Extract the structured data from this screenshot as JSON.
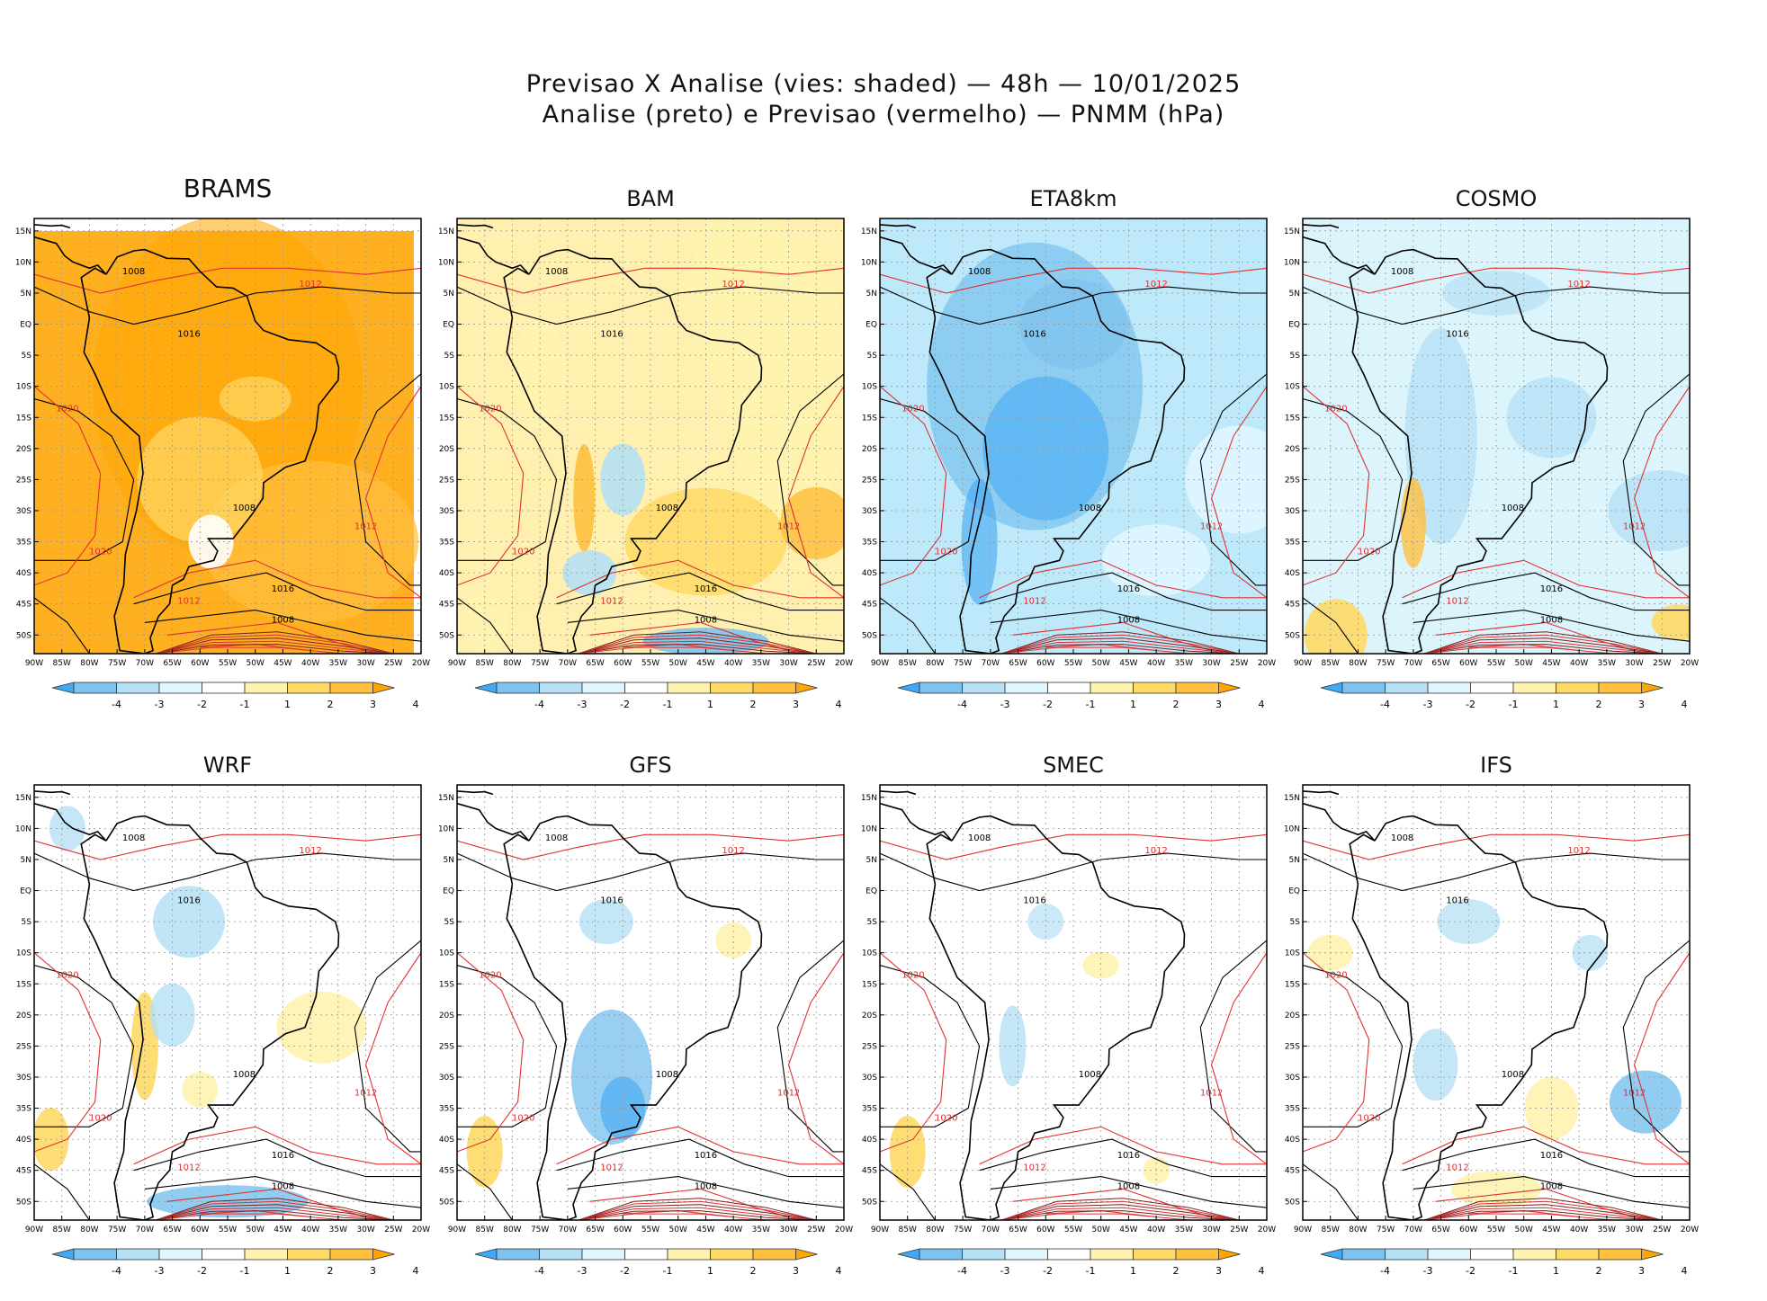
{
  "figure": {
    "title_line1": "Previsao X Analise (vies: shaded) — 48h — 10/01/2025",
    "title_line2": "Analise (preto) e Previsao (vermelho) — PNMM (hPa)"
  },
  "chart_data": {
    "type": "heatmap",
    "variable": "PNMM (hPa)",
    "lead_time": "48h",
    "date": "10/01/2025",
    "analysis_contour_color": "#000000",
    "forecast_contour_color": "#e03030",
    "lat_ticks": [
      "15N",
      "10N",
      "5N",
      "EQ",
      "5S",
      "10S",
      "15S",
      "20S",
      "25S",
      "30S",
      "35S",
      "40S",
      "45S",
      "50S"
    ],
    "lon_ticks": [
      "90W",
      "85W",
      "80W",
      "75W",
      "70W",
      "65W",
      "60W",
      "55W",
      "50W",
      "45W",
      "40W",
      "35W",
      "30W",
      "25W",
      "20W"
    ],
    "lon_range": [
      -90,
      -20
    ],
    "lat_range": [
      -53,
      17
    ],
    "colorbar": {
      "labels": [
        "-4",
        "-3",
        "-2",
        "-1",
        "1",
        "2",
        "3",
        "4"
      ],
      "colors": [
        "#3fa9f5",
        "#7ec3ef",
        "#b5e0f5",
        "#dff6ff",
        "#ffffff",
        "#fff3b0",
        "#ffd966",
        "#ffc040",
        "#ffa500"
      ]
    },
    "panels": [
      {
        "model": "BRAMS",
        "bias": "strong positive",
        "base_color": "#ffb020",
        "isobar_labels": [
          "1008",
          "1012",
          "1016",
          "1020"
        ]
      },
      {
        "model": "BAM",
        "bias": "mixed",
        "base_color": "#fff0b0",
        "isobar_labels": [
          "1008",
          "1012",
          "1016",
          "1020"
        ]
      },
      {
        "model": "ETA8km",
        "bias": "negative",
        "base_color": "#bde9fb",
        "isobar_labels": [
          "1008",
          "1012",
          "1016",
          "1020"
        ]
      },
      {
        "model": "COSMO",
        "bias": "slightly negative",
        "base_color": "#dcf5fd",
        "isobar_labels": [
          "1008",
          "1012",
          "1016",
          "1020"
        ]
      },
      {
        "model": "WRF",
        "bias": "near neutral",
        "base_color": "#ffffff",
        "isobar_labels": [
          "1008",
          "1012",
          "1016",
          "1020"
        ]
      },
      {
        "model": "GFS",
        "bias": "near neutral",
        "base_color": "#ffffff",
        "isobar_labels": [
          "1008",
          "1012",
          "1016",
          "1020"
        ]
      },
      {
        "model": "SMEC",
        "bias": "near neutral",
        "base_color": "#ffffff",
        "isobar_labels": [
          "1008",
          "1012",
          "1016",
          "1020"
        ]
      },
      {
        "model": "IFS",
        "bias": "near neutral",
        "base_color": "#ffffff",
        "isobar_labels": [
          "1008",
          "1012",
          "1016",
          "1020"
        ]
      }
    ]
  }
}
